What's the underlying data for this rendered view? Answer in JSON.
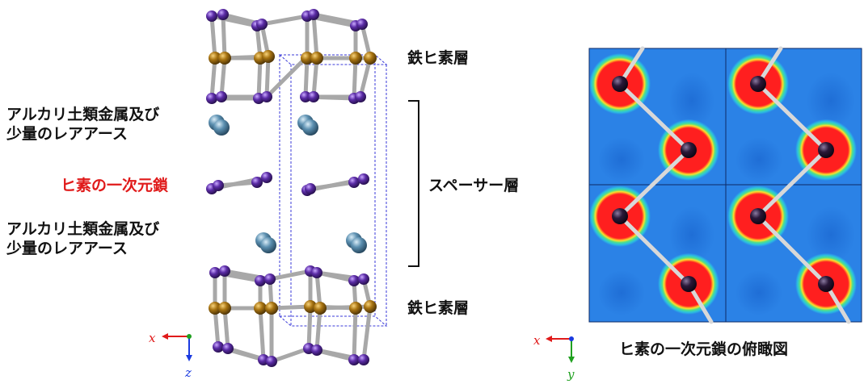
{
  "left_panel": {
    "labels": {
      "iron_arsenic_layer_top": "鉄ヒ素層",
      "alkaline_earth_top": [
        "アルカリ土類金属及び",
        "少量のレアアース"
      ],
      "arsenic_chain": "ヒ素の一次元鎖",
      "alkaline_earth_bottom": [
        "アルカリ土類金属及び",
        "少量のレアアース"
      ],
      "spacer_layer": "スペーサー層",
      "iron_arsenic_layer_bottom": "鉄ヒ素層"
    },
    "axes": {
      "x": "x",
      "z": "z"
    }
  },
  "right_panel": {
    "caption": "ヒ素の一次元鎖の俯瞰図",
    "axes": {
      "x": "x",
      "y": "y"
    }
  },
  "colors": {
    "arsenic": "#5b2ca6",
    "iron": "#a87412",
    "alkaline_earth": "#5b8fb0",
    "accent_red": "#e01a1a",
    "density_bg": "#2b82e6",
    "density_high": "#ff1f1f"
  }
}
